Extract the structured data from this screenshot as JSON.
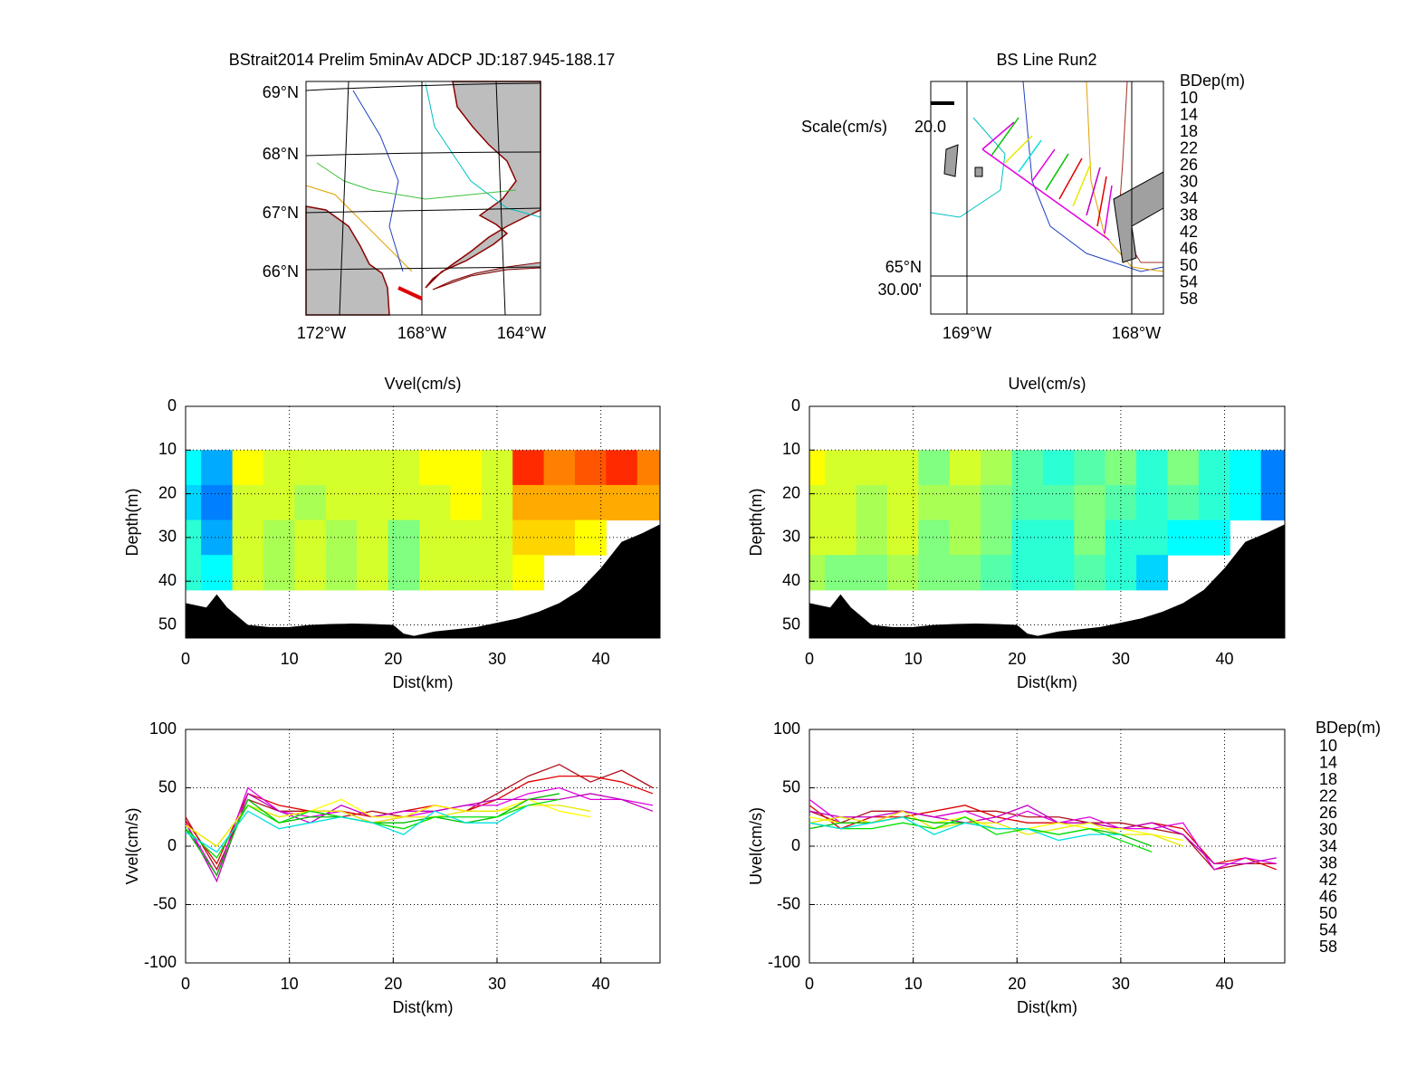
{
  "chart_data": [
    {
      "type": "map",
      "title": "BStrait2014 Prelim 5minAv ADCP JD:187.945-188.17",
      "lat_labels": [
        "69°N",
        "68°N",
        "67°N",
        "66°N"
      ],
      "lon_labels": [
        "172°W",
        "168°W",
        "164°W"
      ]
    },
    {
      "type": "map",
      "title": "BS Line Run2",
      "scale_label": "Scale(cm/s)",
      "scale": {
        "value": 20,
        "label": "20.0"
      },
      "lat_labels": [
        "65°N",
        "30.00'"
      ],
      "lon_labels": [
        "169°W",
        "168°W"
      ],
      "legend_title": "BDep(m)",
      "legend_labels": [
        "10",
        "14",
        "18",
        "22",
        "26",
        "30",
        "34",
        "38",
        "42",
        "46",
        "50",
        "54",
        "58"
      ],
      "legend_colors": [
        "#b0101a",
        "#e00000",
        "#e000e0",
        "#c000c0",
        "#ffff00",
        "#e8e800",
        "#00c000",
        "#00e000",
        "#00e0e0",
        "#00ffff",
        "#0000c0",
        "#000080",
        "#000000"
      ]
    },
    {
      "type": "contour",
      "title": "Vvel(cm/s)",
      "xlabel": "Dist(km)",
      "ylabel": "Depth(m)",
      "xlim": [
        0,
        45.7
      ],
      "ylim": [
        0,
        53
      ],
      "y_reversed": true,
      "xticks": [
        0,
        10,
        20,
        30,
        40
      ],
      "yticks": [
        0,
        10,
        20,
        30,
        40,
        50
      ],
      "grid": true,
      "colormap": "jet",
      "clim": [
        -40,
        80
      ],
      "x": [
        0,
        3,
        6,
        9,
        12,
        15,
        18,
        21,
        24,
        27,
        30,
        33,
        36,
        39,
        42,
        45
      ],
      "depth": [
        10,
        18,
        26,
        34
      ],
      "z": [
        [
          5,
          -5,
          35,
          30,
          30,
          30,
          30,
          30,
          35,
          35,
          30,
          60,
          50,
          55,
          60,
          50
        ],
        [
          0,
          -10,
          30,
          30,
          25,
          30,
          30,
          30,
          30,
          35,
          30,
          45,
          45,
          45,
          45,
          45
        ],
        [
          10,
          -5,
          30,
          25,
          30,
          25,
          30,
          20,
          30,
          30,
          30,
          40,
          40,
          35,
          null,
          null
        ],
        [
          10,
          5,
          30,
          25,
          30,
          25,
          30,
          20,
          30,
          30,
          30,
          35,
          null,
          null,
          null,
          null
        ]
      ],
      "bottom": {
        "x": [
          0,
          2,
          3,
          4,
          6,
          8,
          10,
          12,
          14,
          16,
          18,
          20,
          21,
          22,
          24,
          26,
          28,
          30,
          32,
          34,
          36,
          38,
          40,
          42,
          44,
          45.7
        ],
        "depth": [
          45,
          46,
          43,
          46,
          50,
          50.5,
          50.5,
          50,
          49.8,
          49.7,
          49.8,
          50,
          52,
          52.5,
          51.5,
          51,
          50.5,
          49.5,
          48.5,
          47,
          45,
          42,
          37,
          31,
          29,
          27
        ]
      }
    },
    {
      "type": "contour",
      "title": "Uvel(cm/s)",
      "xlabel": "Dist(km)",
      "ylabel": "Depth(m)",
      "xlim": [
        0,
        45.8
      ],
      "ylim": [
        0,
        53
      ],
      "y_reversed": true,
      "xticks": [
        0,
        10,
        20,
        30,
        40
      ],
      "yticks": [
        0,
        10,
        20,
        30,
        40,
        50
      ],
      "grid": true,
      "colormap": "jet",
      "clim": [
        -40,
        80
      ],
      "x": [
        0,
        3,
        6,
        9,
        12,
        15,
        18,
        21,
        24,
        27,
        30,
        33,
        36,
        39,
        42,
        45
      ],
      "depth": [
        10,
        18,
        26,
        34
      ],
      "z": [
        [
          35,
          30,
          30,
          30,
          20,
          30,
          25,
          15,
          10,
          15,
          20,
          10,
          20,
          10,
          5,
          -10
        ],
        [
          30,
          30,
          25,
          30,
          25,
          25,
          20,
          15,
          15,
          20,
          15,
          10,
          15,
          10,
          5,
          -10
        ],
        [
          30,
          30,
          25,
          30,
          20,
          25,
          20,
          10,
          10,
          20,
          10,
          10,
          5,
          5,
          null,
          null
        ],
        [
          25,
          20,
          20,
          25,
          20,
          20,
          15,
          10,
          10,
          15,
          10,
          0,
          null,
          null,
          null,
          null
        ]
      ],
      "bottom": {
        "x": [
          0,
          2,
          3,
          4,
          6,
          8,
          10,
          12,
          14,
          16,
          18,
          20,
          21,
          22,
          24,
          26,
          28,
          30,
          32,
          34,
          36,
          38,
          40,
          42,
          44,
          45.8
        ],
        "depth": [
          45,
          46,
          43,
          46,
          50,
          50.5,
          50.5,
          50,
          49.8,
          49.7,
          49.8,
          50,
          52,
          52.5,
          51.5,
          51,
          50.5,
          49.5,
          48.5,
          47,
          45,
          42,
          37,
          31,
          29,
          27
        ]
      }
    },
    {
      "type": "line",
      "xlabel": "Dist(km)",
      "ylabel": "Vvel(cm/s)",
      "xlim": [
        0,
        45.7
      ],
      "ylim": [
        -100,
        100
      ],
      "xticks": [
        0,
        10,
        20,
        30,
        40
      ],
      "yticks": [
        -100,
        -50,
        0,
        50,
        100
      ],
      "grid": true,
      "x": [
        0,
        3,
        6,
        9,
        12,
        15,
        18,
        21,
        24,
        27,
        30,
        33,
        36,
        39,
        42,
        45
      ],
      "series": [
        {
          "color": "#b0101a",
          "values": [
            25,
            -20,
            40,
            30,
            30,
            25,
            30,
            25,
            35,
            30,
            45,
            60,
            70,
            55,
            65,
            50
          ]
        },
        {
          "color": "#e00000",
          "values": [
            22,
            -15,
            45,
            35,
            30,
            30,
            25,
            30,
            35,
            30,
            40,
            55,
            60,
            60,
            55,
            45
          ]
        },
        {
          "color": "#e000e0",
          "values": [
            20,
            -25,
            50,
            30,
            25,
            30,
            20,
            25,
            30,
            35,
            35,
            45,
            50,
            40,
            40,
            35
          ]
        },
        {
          "color": "#c000c0",
          "values": [
            20,
            -30,
            45,
            30,
            20,
            35,
            25,
            30,
            30,
            35,
            40,
            40,
            40,
            45,
            40,
            30
          ]
        },
        {
          "color": "#ffff00",
          "values": [
            18,
            0,
            35,
            25,
            30,
            40,
            25,
            25,
            35,
            30,
            30,
            40,
            30,
            25,
            null,
            null
          ]
        },
        {
          "color": "#e8e800",
          "values": [
            18,
            0,
            35,
            25,
            30,
            30,
            20,
            25,
            25,
            30,
            30,
            35,
            35,
            30,
            null,
            null
          ]
        },
        {
          "color": "#00c000",
          "values": [
            15,
            -25,
            40,
            20,
            25,
            25,
            20,
            20,
            25,
            20,
            25,
            40,
            45,
            null,
            null,
            null
          ]
        },
        {
          "color": "#00e000",
          "values": [
            15,
            -10,
            35,
            20,
            30,
            25,
            20,
            15,
            25,
            25,
            25,
            35,
            40,
            null,
            null,
            null
          ]
        },
        {
          "color": "#00e0e0",
          "values": [
            12,
            -5,
            30,
            15,
            20,
            25,
            20,
            10,
            30,
            20,
            20,
            35,
            null,
            null,
            null,
            null
          ]
        }
      ]
    },
    {
      "type": "line",
      "xlabel": "Dist(km)",
      "ylabel": "Uvel(cm/s)",
      "xlim": [
        0,
        45.8
      ],
      "ylim": [
        -100,
        100
      ],
      "xticks": [
        0,
        10,
        20,
        30,
        40
      ],
      "yticks": [
        -100,
        -50,
        0,
        50,
        100
      ],
      "grid": true,
      "legend_title": "BDep(m)",
      "x": [
        0,
        3,
        6,
        9,
        12,
        15,
        18,
        21,
        24,
        27,
        30,
        33,
        36,
        39,
        42,
        45
      ],
      "series": [
        {
          "name": "10",
          "color": "#b0101a",
          "values": [
            30,
            20,
            30,
            30,
            25,
            30,
            30,
            25,
            25,
            20,
            20,
            15,
            10,
            -20,
            -15,
            -15
          ]
        },
        {
          "name": "14",
          "color": "#e00000",
          "values": [
            35,
            15,
            25,
            25,
            30,
            35,
            25,
            20,
            20,
            20,
            15,
            20,
            15,
            -15,
            -10,
            -20
          ]
        },
        {
          "name": "18",
          "color": "#e000e0",
          "values": [
            40,
            20,
            20,
            30,
            25,
            30,
            20,
            30,
            20,
            25,
            15,
            15,
            20,
            -20,
            -10,
            -15
          ]
        },
        {
          "name": "22",
          "color": "#c000c0",
          "values": [
            30,
            25,
            25,
            30,
            25,
            20,
            25,
            35,
            20,
            20,
            15,
            20,
            10,
            -15,
            -15,
            -10
          ]
        },
        {
          "name": "26",
          "color": "#ffff00",
          "values": [
            25,
            20,
            20,
            25,
            20,
            25,
            15,
            15,
            20,
            15,
            15,
            10,
            5,
            null,
            null,
            null
          ]
        },
        {
          "name": "30",
          "color": "#e8e800",
          "values": [
            20,
            25,
            20,
            30,
            15,
            20,
            20,
            10,
            15,
            20,
            10,
            10,
            0,
            null,
            null,
            null
          ]
        },
        {
          "name": "34",
          "color": "#00c000",
          "values": [
            15,
            20,
            20,
            25,
            20,
            20,
            15,
            15,
            10,
            15,
            10,
            0,
            null,
            null,
            null,
            null
          ]
        },
        {
          "name": "38",
          "color": "#00e000",
          "values": [
            20,
            15,
            15,
            20,
            15,
            25,
            10,
            15,
            10,
            15,
            5,
            -5,
            null,
            null,
            null,
            null
          ]
        },
        {
          "name": "42",
          "color": "#00e0e0",
          "values": [
            20,
            15,
            20,
            25,
            10,
            20,
            15,
            15,
            5,
            10,
            10,
            null,
            null,
            null,
            null,
            null
          ]
        },
        {
          "name": "46",
          "color": "#00ffff",
          "values": [
            null,
            null,
            null,
            null,
            null,
            null,
            null,
            null,
            null,
            null,
            null,
            null,
            null,
            null,
            null,
            null
          ]
        },
        {
          "name": "50",
          "color": "#0000c0",
          "values": [
            null,
            null,
            null,
            null,
            null,
            null,
            null,
            null,
            null,
            null,
            null,
            null,
            null,
            null,
            null,
            null
          ]
        },
        {
          "name": "54",
          "color": "#000080",
          "values": [
            null,
            null,
            null,
            null,
            null,
            null,
            null,
            null,
            null,
            null,
            null,
            null,
            null,
            null,
            null,
            null
          ]
        },
        {
          "name": "58",
          "color": "#000000",
          "values": [
            null,
            null,
            null,
            null,
            null,
            null,
            null,
            null,
            null,
            null,
            null,
            null,
            null,
            null,
            null,
            null
          ]
        }
      ]
    }
  ]
}
